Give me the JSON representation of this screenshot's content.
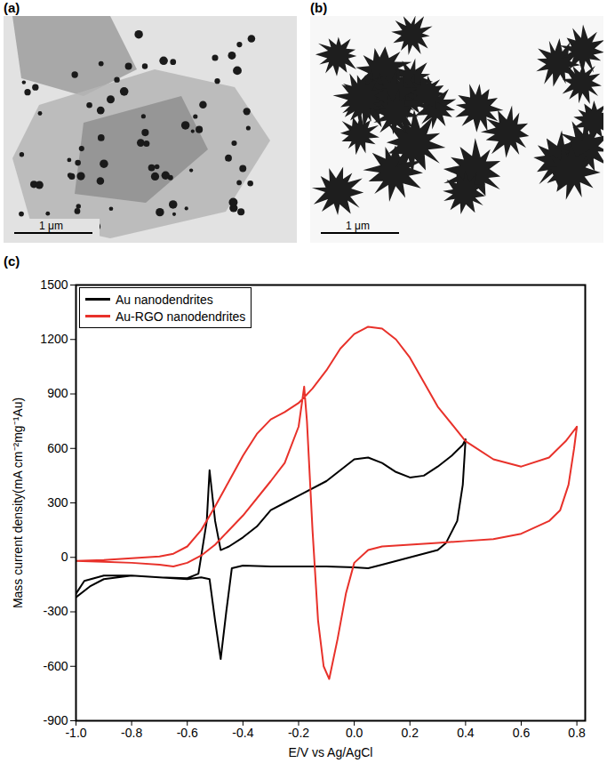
{
  "panels": [
    {
      "label": "(a)",
      "scale_bar": "1 μm"
    },
    {
      "label": "(b)",
      "scale_bar": "1 μm"
    },
    {
      "label": "(c)"
    }
  ],
  "chart_data": {
    "type": "line",
    "x_label": "E/V vs Ag/AgCl",
    "y_label": "Mass current density(mA cm⁻²mg⁻¹Au)",
    "xlim": [
      -1.0,
      0.83
    ],
    "xticks": [
      {
        "value": -1.0,
        "label": "-1.0"
      },
      {
        "value": -0.8,
        "label": "-0.8"
      },
      {
        "value": -0.6,
        "label": "-0.6"
      },
      {
        "value": -0.4,
        "label": "-0.4"
      },
      {
        "value": -0.2,
        "label": "-0.2"
      },
      {
        "value": 0.0,
        "label": "0.0"
      },
      {
        "value": 0.2,
        "label": "0.2"
      },
      {
        "value": 0.4,
        "label": "0.4"
      },
      {
        "value": 0.6,
        "label": "0.6"
      },
      {
        "value": 0.8,
        "label": "0.8"
      }
    ],
    "ylim": [
      -900,
      1500
    ],
    "yticks": [
      -900,
      -600,
      -300,
      0,
      300,
      600,
      900,
      1200,
      1500
    ],
    "grid": false,
    "legend": "top-left",
    "series": [
      {
        "name": "Au nanodendrites",
        "color": "#000000",
        "x": [
          -1.0,
          -0.97,
          -0.9,
          -0.8,
          -0.7,
          -0.6,
          -0.56,
          -0.53,
          -0.52,
          -0.5,
          -0.48,
          -0.45,
          -0.4,
          -0.35,
          -0.3,
          -0.25,
          -0.2,
          -0.1,
          0.0,
          0.05,
          0.1,
          0.15,
          0.2,
          0.25,
          0.3,
          0.35,
          0.39,
          0.4,
          0.39,
          0.37,
          0.33,
          0.3,
          0.2,
          0.1,
          0.05,
          0.0,
          -0.1,
          -0.2,
          -0.3,
          -0.4,
          -0.44,
          -0.46,
          -0.48,
          -0.5,
          -0.52,
          -0.55,
          -0.6,
          -0.7,
          -0.8,
          -0.9,
          -0.95,
          -1.0
        ],
        "values": [
          -200,
          -130,
          -100,
          -100,
          -110,
          -115,
          -90,
          200,
          480,
          200,
          40,
          60,
          110,
          170,
          260,
          300,
          340,
          420,
          540,
          550,
          520,
          470,
          440,
          450,
          500,
          560,
          620,
          650,
          400,
          200,
          80,
          40,
          0,
          -40,
          -60,
          -55,
          -50,
          -50,
          -50,
          -45,
          -60,
          -300,
          -560,
          -350,
          -120,
          -110,
          -120,
          -110,
          -100,
          -120,
          -160,
          -220
        ]
      },
      {
        "name": "Au-RGO nanodendrites",
        "color": "#e8312a",
        "x": [
          -1.0,
          -0.9,
          -0.8,
          -0.7,
          -0.65,
          -0.6,
          -0.55,
          -0.5,
          -0.45,
          -0.4,
          -0.35,
          -0.3,
          -0.25,
          -0.2,
          -0.15,
          -0.1,
          -0.05,
          0.0,
          0.05,
          0.1,
          0.15,
          0.2,
          0.3,
          0.4,
          0.5,
          0.6,
          0.7,
          0.76,
          0.8,
          0.79,
          0.77,
          0.74,
          0.7,
          0.6,
          0.5,
          0.4,
          0.3,
          0.2,
          0.1,
          0.05,
          0.0,
          -0.03,
          -0.06,
          -0.09,
          -0.11,
          -0.13,
          -0.15,
          -0.17,
          -0.18,
          -0.2,
          -0.25,
          -0.3,
          -0.4,
          -0.5,
          -0.55,
          -0.6,
          -0.65,
          -0.7,
          -0.8,
          -0.9,
          -1.0
        ],
        "values": [
          -20,
          -15,
          -5,
          5,
          20,
          60,
          150,
          280,
          420,
          560,
          680,
          760,
          800,
          850,
          930,
          1030,
          1150,
          1230,
          1270,
          1260,
          1200,
          1100,
          830,
          640,
          540,
          500,
          550,
          640,
          720,
          600,
          400,
          260,
          200,
          130,
          100,
          90,
          80,
          70,
          60,
          40,
          -30,
          -200,
          -450,
          -670,
          -600,
          -350,
          150,
          750,
          940,
          720,
          520,
          420,
          230,
          70,
          10,
          -30,
          -50,
          -40,
          -30,
          -25,
          -20
        ]
      }
    ]
  }
}
